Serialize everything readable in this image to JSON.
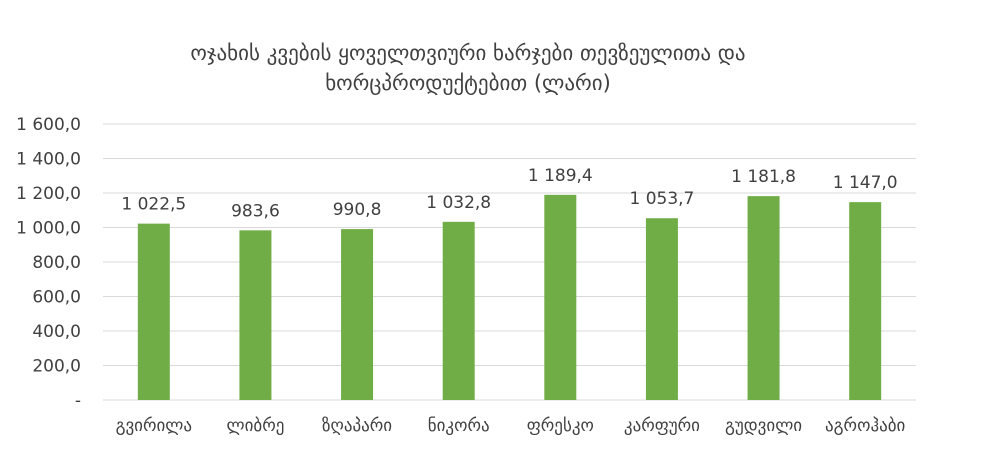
{
  "chart_data": {
    "type": "bar",
    "title_lines": [
      "ოჯახის კვების ყოველთვიური ხარჯები თევზეულითა და",
      "ხორცპროდუქტებით (ლარი)"
    ],
    "categories": [
      "გვირილა",
      "ლიბრე",
      "ზღაპარი",
      "ნიკორა",
      "ფრესკო",
      "კარფური",
      "გუდვილი",
      "აგროჰაბი"
    ],
    "values": [
      1022.5,
      983.6,
      990.8,
      1032.8,
      1189.4,
      1053.7,
      1181.8,
      1147.0
    ],
    "value_labels": [
      "1 022,5",
      "983,6",
      "990,8",
      "1 032,8",
      "1 189,4",
      "1 053,7",
      "1 181,8",
      "1 147,0"
    ],
    "y_ticks": [
      0,
      200,
      400,
      600,
      800,
      1000,
      1200,
      1400,
      1600
    ],
    "y_tick_labels": [
      "-",
      "200,0",
      "400,0",
      "600,0",
      "800,0",
      "1 000,0",
      "1 200,0",
      "1 400,0",
      "1 600,0"
    ],
    "ylim": [
      0,
      1600
    ],
    "grid": true,
    "legend": "none",
    "bar_color": "#70AD47",
    "grid_color": "#D9D9D9",
    "text_color": "#404040"
  }
}
